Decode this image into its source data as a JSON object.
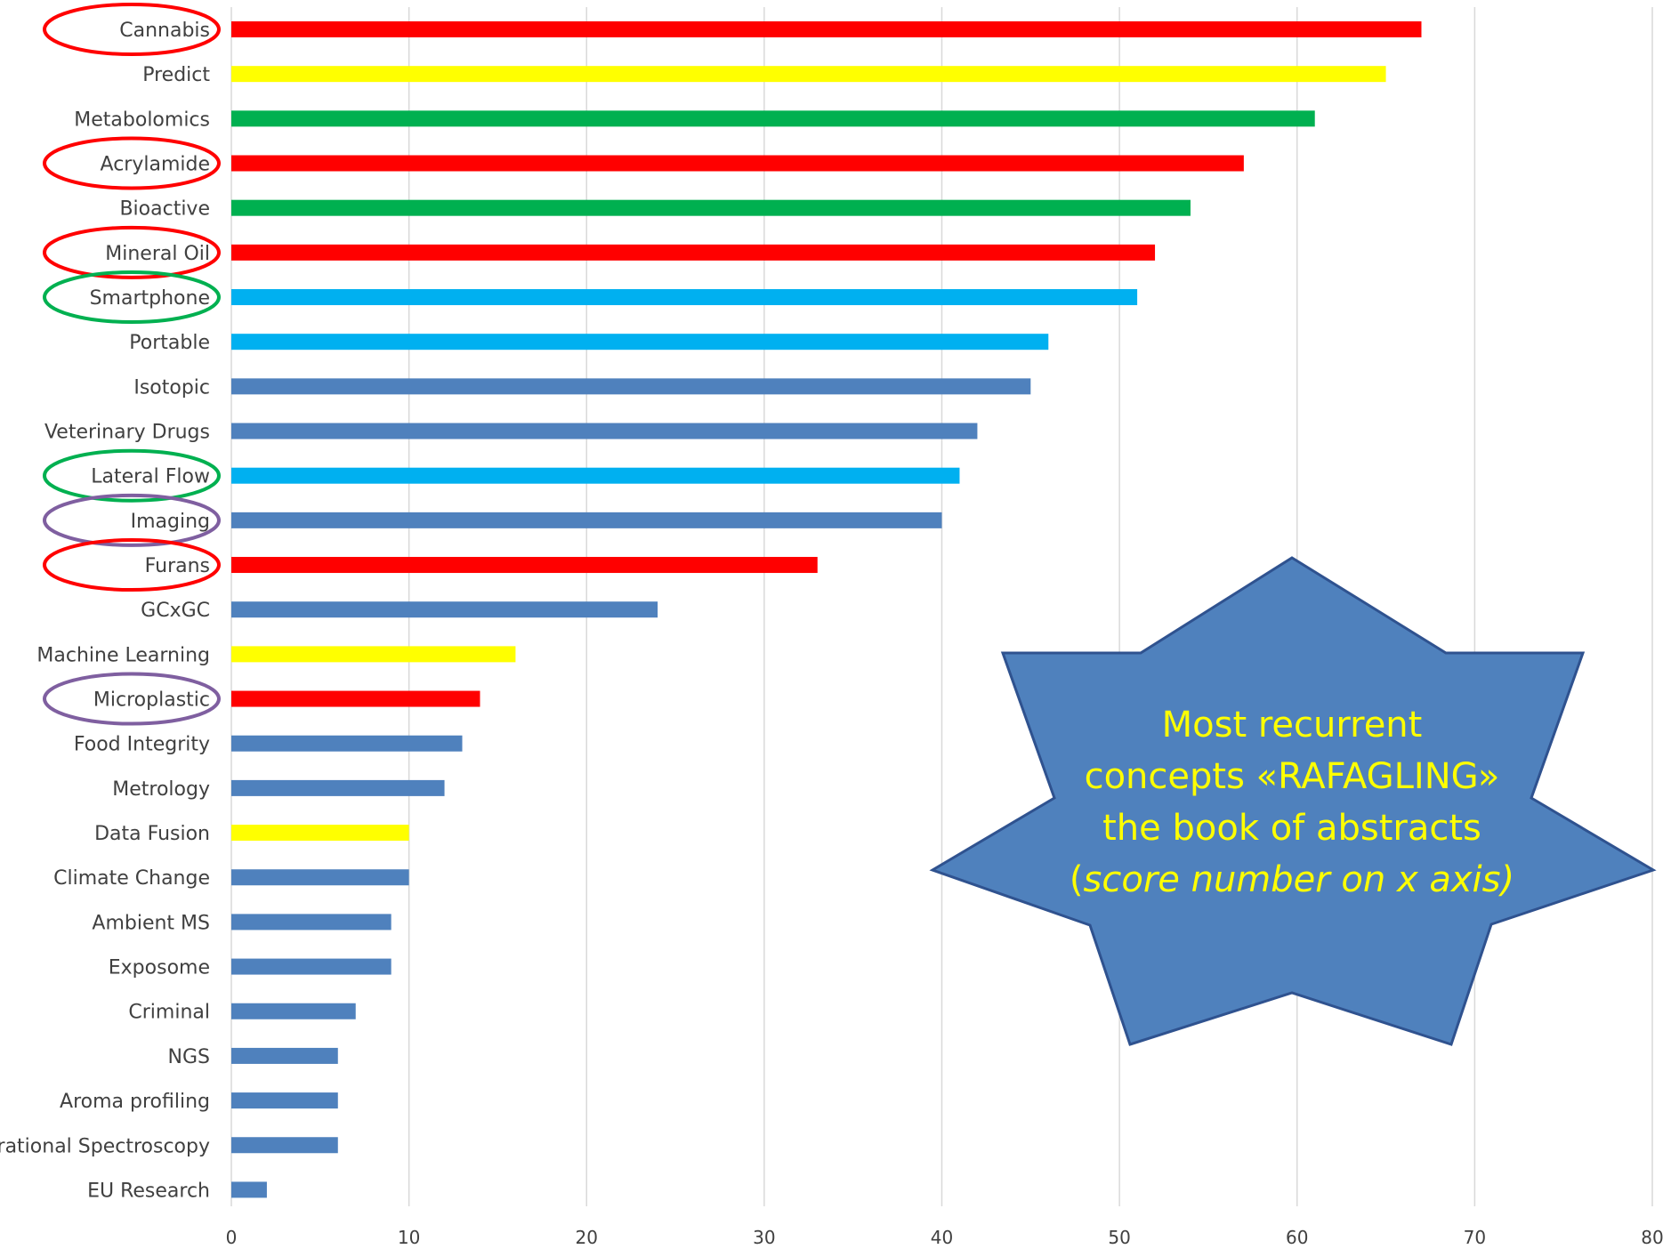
{
  "chart_data": {
    "type": "bar",
    "orientation": "horizontal",
    "categories": [
      "Cannabis",
      "Predict",
      "Metabolomics",
      "Acrylamide",
      "Bioactive",
      "Mineral Oil",
      "Smartphone",
      "Portable",
      "Isotopic",
      "Veterinary Drugs",
      "Lateral Flow",
      "Imaging",
      "Furans",
      "GCxGC",
      "Machine Learning",
      "Microplastic",
      "Food Integrity",
      "Metrology",
      "Data Fusion",
      "Climate Change",
      "Ambient MS",
      "Exposome",
      "Criminal",
      "NGS",
      "Aroma profiling",
      "Vibrational Spectroscopy",
      "EU Research"
    ],
    "values": [
      67,
      65,
      61,
      57,
      54,
      52,
      51,
      46,
      45,
      42,
      41,
      40,
      33,
      24,
      16,
      14,
      13,
      12,
      10,
      10,
      9,
      9,
      7,
      6,
      6,
      6,
      2
    ],
    "bar_colors": [
      "#ff0000",
      "#ffff00",
      "#00b050",
      "#ff0000",
      "#00b050",
      "#ff0000",
      "#00b0f0",
      "#00b0f0",
      "#4f81bd",
      "#4f81bd",
      "#00b0f0",
      "#4f81bd",
      "#ff0000",
      "#4f81bd",
      "#ffff00",
      "#ff0000",
      "#4f81bd",
      "#4f81bd",
      "#ffff00",
      "#4f81bd",
      "#4f81bd",
      "#4f81bd",
      "#4f81bd",
      "#4f81bd",
      "#4f81bd",
      "#4f81bd",
      "#4f81bd"
    ],
    "circled": {
      "Cannabis": "#ff0000",
      "Acrylamide": "#ff0000",
      "Mineral Oil": "#ff0000",
      "Smartphone": "#00b050",
      "Lateral Flow": "#00b050",
      "Imaging": "#7f5fa0",
      "Furans": "#ff0000",
      "Microplastic": "#7f5fa0"
    },
    "xlim": [
      0,
      80
    ],
    "xticks": [
      0,
      10,
      20,
      30,
      40,
      50,
      60,
      70,
      80
    ],
    "grid": "vertical",
    "title": "",
    "xlabel": "",
    "ylabel": "",
    "gridline_color": "#d9d9d9"
  },
  "callout": {
    "line1": "Most recurrent",
    "line2": "concepts «RAFAGLING»",
    "line3": "the book of abstracts",
    "line4_open": "(",
    "line4_italic": "score number on x axis)",
    "fill_color": "#4f81bd",
    "border_color": "#2f528f",
    "text_color": "#ffff00"
  }
}
